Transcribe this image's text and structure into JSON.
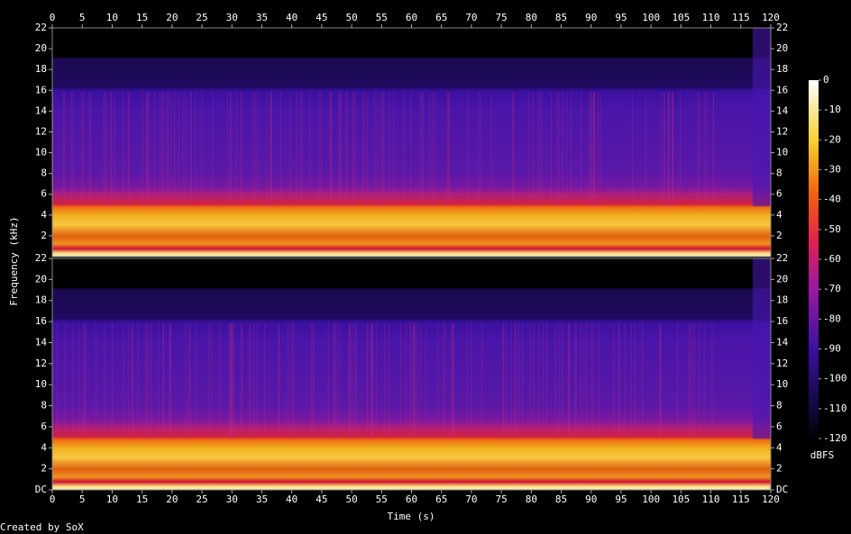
{
  "chart_data": {
    "type": "spectrogram",
    "x_label": "Time (s)",
    "y_label": "Frequency (kHz)",
    "colorbar_label": "dBFS",
    "footer": "Created by SoX",
    "xlim": [
      0,
      120
    ],
    "xticks": [
      0,
      5,
      10,
      15,
      20,
      25,
      30,
      35,
      40,
      45,
      50,
      55,
      60,
      65,
      70,
      75,
      80,
      85,
      90,
      95,
      100,
      105,
      110,
      115,
      120
    ],
    "channels": [
      {
        "ylim": [
          0,
          22
        ],
        "yticks": [
          2,
          4,
          6,
          8,
          10,
          12,
          14,
          16,
          18,
          20,
          22
        ]
      },
      {
        "ylim": [
          0,
          22
        ],
        "yticks": [
          {
            "value": 0,
            "label": "DC"
          },
          2,
          4,
          6,
          8,
          10,
          12,
          14,
          16,
          18,
          20,
          22
        ]
      }
    ],
    "colorbar": {
      "lim": [
        -120,
        0
      ],
      "ticks": [
        0,
        -10,
        -20,
        -30,
        -40,
        -50,
        -60,
        -70,
        -80,
        -90,
        -100,
        -110,
        -120
      ]
    }
  }
}
